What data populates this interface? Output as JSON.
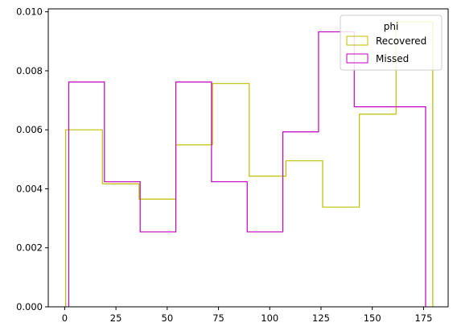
{
  "chart_data": {
    "type": "histogram-step",
    "xlim": [
      -8,
      187
    ],
    "ylim": [
      0,
      0.0101
    ],
    "xticks": [
      0,
      25,
      50,
      75,
      100,
      125,
      150,
      175
    ],
    "yticks": [
      0.0,
      0.002,
      0.004,
      0.006,
      0.008,
      0.01
    ],
    "ytick_labels": [
      "0.000",
      "0.002",
      "0.004",
      "0.006",
      "0.008",
      "0.010"
    ],
    "legend": {
      "title": "phi",
      "placement": "upper right"
    },
    "series": [
      {
        "name": "Recovered",
        "color": "#bfbf00",
        "edges": [
          0.5,
          18.4,
          36.3,
          54.2,
          72.1,
          90.0,
          107.9,
          125.8,
          143.7,
          161.6,
          179.5
        ],
        "values": [
          0.006,
          0.00417,
          0.00365,
          0.00549,
          0.00757,
          0.00443,
          0.00495,
          0.00338,
          0.00653,
          0.00966
        ]
      },
      {
        "name": "Missed",
        "color": "#bf00bf",
        "edges": [
          2.0,
          19.4,
          36.8,
          54.2,
          71.6,
          89.0,
          106.4,
          123.8,
          141.2,
          158.6,
          176.0
        ],
        "values": [
          0.00762,
          0.00424,
          0.00254,
          0.00762,
          0.00424,
          0.00254,
          0.00593,
          0.00932,
          0.00678,
          0.00678
        ]
      }
    ]
  }
}
